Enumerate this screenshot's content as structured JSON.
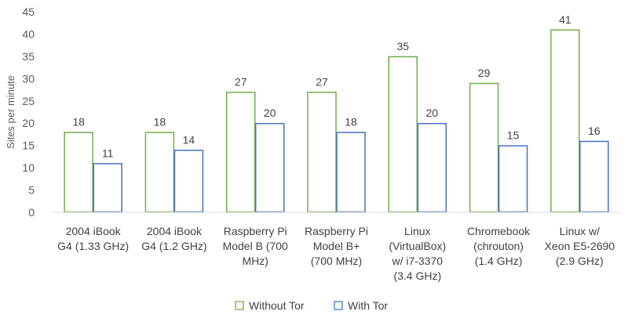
{
  "chart_data": {
    "type": "bar",
    "title": "",
    "xlabel": "",
    "ylabel": "Sites per minute",
    "ylim": [
      0,
      45
    ],
    "yticks": [
      0,
      5,
      10,
      15,
      20,
      25,
      30,
      35,
      40,
      45
    ],
    "grid": false,
    "legend_position": "bottom",
    "categories": [
      [
        "2004 iBook",
        "G4 (1.33 GHz)"
      ],
      [
        "2004 iBook",
        "G4 (1.2 GHz)"
      ],
      [
        "Raspberry Pi",
        "Model B (700",
        "MHz)"
      ],
      [
        "Raspberry Pi",
        "Model B+",
        "(700 MHz)"
      ],
      [
        "Linux",
        "(VirtualBox)",
        "w/ i7-3370",
        "(3.4 GHz)"
      ],
      [
        "Chromebook",
        "(chrouton)",
        "(1.4 GHz)"
      ],
      [
        "Linux w/",
        "Xeon E5-2690",
        "(2.9 GHz)"
      ]
    ],
    "series": [
      {
        "name": "Without Tor",
        "color": "#70ad47",
        "values": [
          18,
          18,
          27,
          27,
          35,
          29,
          41
        ]
      },
      {
        "name": "With Tor",
        "color": "#4472c4",
        "values": [
          11,
          14,
          20,
          18,
          20,
          15,
          16
        ]
      }
    ]
  }
}
